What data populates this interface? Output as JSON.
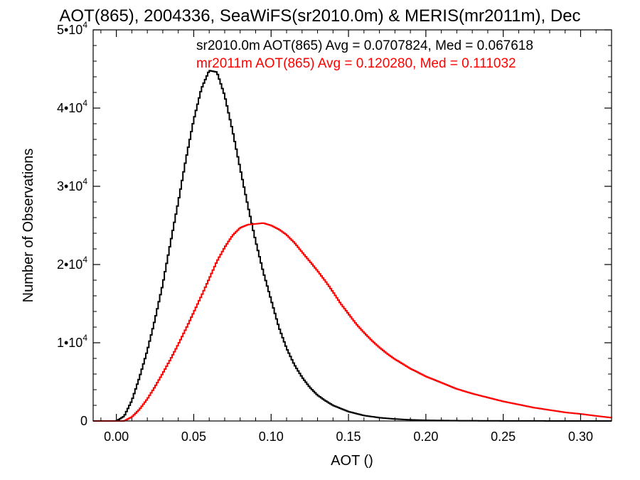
{
  "chart_data": {
    "type": "line",
    "title": "AOT(865), 2004336, SeaWiFS(sr2010.0m) & MERIS(mr2011m), Dec",
    "xlabel": "AOT ()",
    "ylabel": "Number of Observations",
    "xlim": [
      -0.015,
      0.32
    ],
    "ylim": [
      0,
      50000
    ],
    "x_ticks": [
      {
        "value": 0.0,
        "label": "0.00"
      },
      {
        "value": 0.05,
        "label": "0.05"
      },
      {
        "value": 0.1,
        "label": "0.10"
      },
      {
        "value": 0.15,
        "label": "0.15"
      },
      {
        "value": 0.2,
        "label": "0.20"
      },
      {
        "value": 0.25,
        "label": "0.25"
      },
      {
        "value": 0.3,
        "label": "0.30"
      }
    ],
    "y_ticks": [
      {
        "value": 0,
        "mant": "0",
        "exp": ""
      },
      {
        "value": 10000,
        "mant": "1•10",
        "exp": "4"
      },
      {
        "value": 20000,
        "mant": "2•10",
        "exp": "4"
      },
      {
        "value": 30000,
        "mant": "3•10",
        "exp": "4"
      },
      {
        "value": 40000,
        "mant": "4•10",
        "exp": "4"
      },
      {
        "value": 50000,
        "mant": "5•10",
        "exp": "4"
      }
    ],
    "grid": false,
    "series": [
      {
        "color": "#000000",
        "annotation": "sr2010.0m AOT(865) Avg = 0.0707824, Med = 0.067618",
        "x": [
          -0.015,
          0.0,
          0.005,
          0.01,
          0.015,
          0.02,
          0.025,
          0.03,
          0.035,
          0.04,
          0.045,
          0.05,
          0.055,
          0.06,
          0.065,
          0.07,
          0.075,
          0.08,
          0.085,
          0.09,
          0.095,
          0.1,
          0.105,
          0.11,
          0.115,
          0.12,
          0.125,
          0.13,
          0.135,
          0.14,
          0.145,
          0.15,
          0.16,
          0.17,
          0.18,
          0.19,
          0.2,
          0.22,
          0.25,
          0.28,
          0.32
        ],
        "y": [
          0,
          0,
          600,
          2600,
          5600,
          9000,
          13000,
          17500,
          22800,
          28000,
          33500,
          38500,
          42500,
          44800,
          44600,
          41600,
          37200,
          32300,
          27500,
          23000,
          19000,
          15500,
          12000,
          9300,
          7200,
          5600,
          4300,
          3300,
          2600,
          2000,
          1600,
          1200,
          700,
          420,
          250,
          150,
          90,
          40,
          15,
          5,
          0
        ]
      },
      {
        "color": "#ff0000",
        "annotation": "mr2011m AOT(865) Avg = 0.120280, Med = 0.111032",
        "x": [
          -0.015,
          0.005,
          0.01,
          0.015,
          0.02,
          0.025,
          0.03,
          0.035,
          0.04,
          0.045,
          0.05,
          0.055,
          0.06,
          0.065,
          0.07,
          0.075,
          0.08,
          0.085,
          0.09,
          0.095,
          0.1,
          0.105,
          0.11,
          0.115,
          0.12,
          0.125,
          0.13,
          0.135,
          0.14,
          0.145,
          0.15,
          0.155,
          0.16,
          0.165,
          0.17,
          0.175,
          0.18,
          0.19,
          0.2,
          0.21,
          0.22,
          0.23,
          0.24,
          0.25,
          0.26,
          0.27,
          0.28,
          0.29,
          0.3,
          0.31,
          0.32
        ],
        "y": [
          0,
          0,
          500,
          1500,
          2800,
          4400,
          6100,
          7900,
          9800,
          11800,
          13900,
          16000,
          18200,
          20400,
          22200,
          23700,
          24700,
          25100,
          25200,
          25300,
          25000,
          24500,
          23800,
          22800,
          21600,
          20400,
          19200,
          17900,
          16500,
          15000,
          13700,
          12400,
          11300,
          10300,
          9400,
          8600,
          7900,
          6700,
          5700,
          4900,
          4100,
          3500,
          3000,
          2500,
          2100,
          1700,
          1400,
          1100,
          900,
          650,
          420
        ]
      }
    ]
  }
}
